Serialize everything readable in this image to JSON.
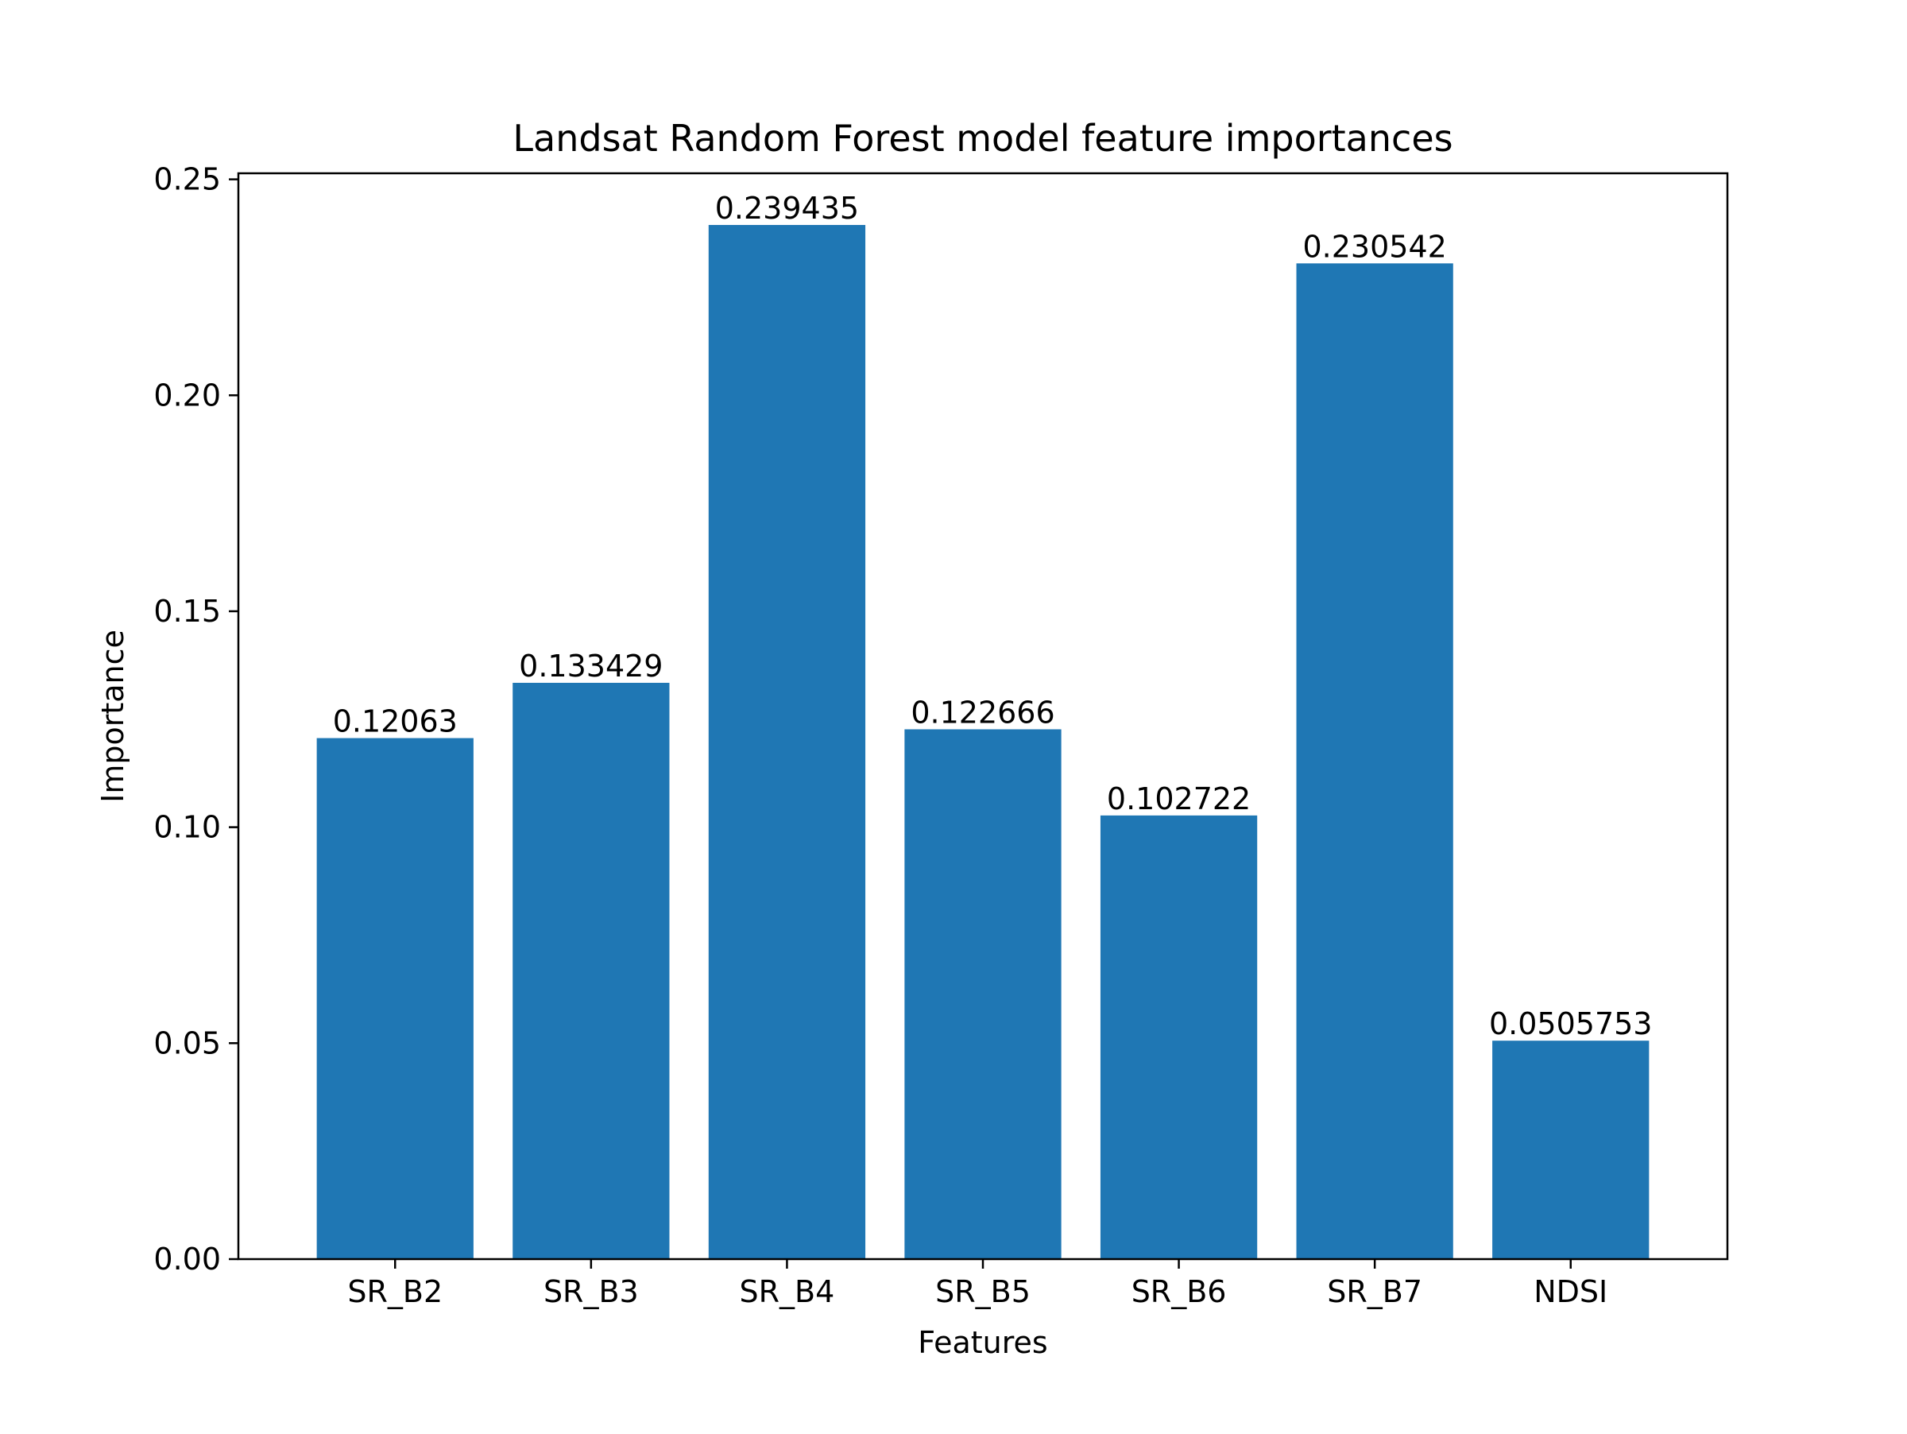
{
  "chart_data": {
    "type": "bar",
    "title": "Landsat Random Forest model feature importances",
    "xlabel": "Features",
    "ylabel": "Importance",
    "categories": [
      "SR_B2",
      "SR_B3",
      "SR_B4",
      "SR_B5",
      "SR_B6",
      "SR_B7",
      "NDSI"
    ],
    "values": [
      0.12063,
      0.133429,
      0.239435,
      0.122666,
      0.102722,
      0.230542,
      0.0505753
    ],
    "data_labels": [
      "0.12063",
      "0.133429",
      "0.239435",
      "0.122666",
      "0.102722",
      "0.230542",
      "0.0505753"
    ],
    "ylim": [
      0,
      0.2514
    ],
    "yticks": [
      0.0,
      0.05,
      0.1,
      0.15,
      0.2,
      0.25
    ],
    "ytick_labels": [
      "0.00",
      "0.05",
      "0.10",
      "0.15",
      "0.20",
      "0.25"
    ],
    "grid": false,
    "legend": "none",
    "bar_color": "#1f77b4"
  }
}
